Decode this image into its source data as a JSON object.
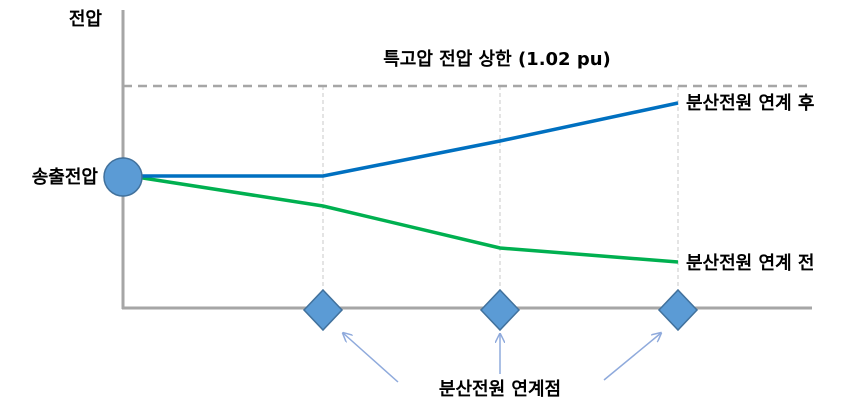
{
  "axis_label": "전압",
  "upper_limit_label": "특고압 전압 상한 (1.02 pu)",
  "curves": [
    {
      "label": "분산전원 연계 후"
    },
    {
      "label": "분산전원 연계 전"
    }
  ],
  "source_label": "송출전압",
  "connection_point_label": "분산전원 연계점"
}
